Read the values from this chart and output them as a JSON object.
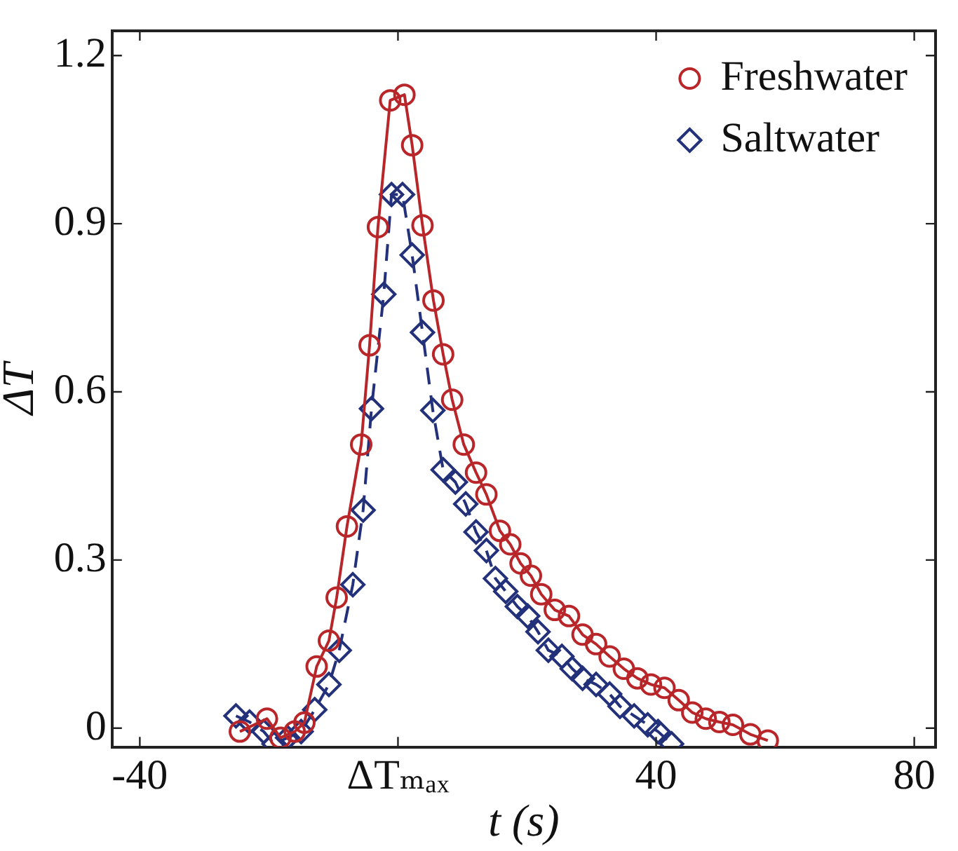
{
  "chart_data": {
    "type": "line",
    "xlabel": "t (s)",
    "ylabel": "ΔT",
    "xlim": [
      -44.3,
      83.3
    ],
    "ylim": [
      -0.033,
      1.244
    ],
    "xticks": [
      -40,
      {
        "value": 0,
        "label": "ΔTₘₐₓ"
      },
      40,
      80
    ],
    "yticks": [
      {
        "value": 0,
        "label": "0"
      },
      0.3,
      0.6,
      0.9,
      1.2
    ],
    "grid": false,
    "legend": "top right",
    "series": [
      {
        "name": "Freshwater",
        "color": "#b8262a",
        "marker": "circle",
        "line_style": "solid",
        "x": [
          -24.5,
          -20.3,
          -18.2,
          -16,
          -14.5,
          -12.6,
          -10.7,
          -9.5,
          -7.9,
          -5.7,
          -4.4,
          -3.1,
          -1.2,
          1,
          2.2,
          3.8,
          5.5,
          7,
          8.4,
          10.2,
          12.1,
          13.7,
          15.8,
          17.4,
          19,
          20.6,
          22.2,
          24.3,
          26.5,
          28.6,
          30.7,
          32.8,
          35,
          37.1,
          39.2,
          41.3,
          43.5,
          45.6,
          47.7,
          49.8,
          51.9,
          54.6,
          57.3
        ],
        "values": [
          -0.006,
          0.017,
          -0.017,
          -0.006,
          0.01,
          0.11,
          0.156,
          0.233,
          0.36,
          0.506,
          0.683,
          0.894,
          1.12,
          1.13,
          1.04,
          0.897,
          0.763,
          0.667,
          0.586,
          0.506,
          0.456,
          0.417,
          0.352,
          0.328,
          0.294,
          0.272,
          0.239,
          0.211,
          0.2,
          0.167,
          0.15,
          0.128,
          0.106,
          0.089,
          0.078,
          0.072,
          0.05,
          0.028,
          0.017,
          0.011,
          0.006,
          -0.011,
          -0.022
        ]
      },
      {
        "name": "Saltwater",
        "color": "#23307a",
        "marker": "diamond",
        "line_style": "dashed",
        "x": [
          -25.1,
          -23,
          -20.8,
          -19.2,
          -17.1,
          -15,
          -12.9,
          -10.7,
          -9.1,
          -7,
          -5.4,
          -4.1,
          -2.2,
          -1,
          0.7,
          2.2,
          3.8,
          5.4,
          7,
          8.9,
          10.5,
          12.1,
          13.7,
          15.1,
          16.7,
          18.5,
          20.1,
          21.7,
          23.3,
          25.4,
          27,
          28.6,
          30.7,
          32.8,
          34.4,
          36.6,
          38.7,
          40.3,
          42.4
        ],
        "values": [
          0.022,
          0.011,
          -0.006,
          -0.028,
          -0.017,
          -0.006,
          0.033,
          0.078,
          0.139,
          0.256,
          0.389,
          0.57,
          0.774,
          0.952,
          0.952,
          0.844,
          0.706,
          0.567,
          0.461,
          0.439,
          0.4,
          0.35,
          0.317,
          0.267,
          0.244,
          0.217,
          0.2,
          0.172,
          0.139,
          0.128,
          0.106,
          0.089,
          0.078,
          0.061,
          0.039,
          0.022,
          0.006,
          -0.006,
          -0.028
        ]
      }
    ]
  }
}
